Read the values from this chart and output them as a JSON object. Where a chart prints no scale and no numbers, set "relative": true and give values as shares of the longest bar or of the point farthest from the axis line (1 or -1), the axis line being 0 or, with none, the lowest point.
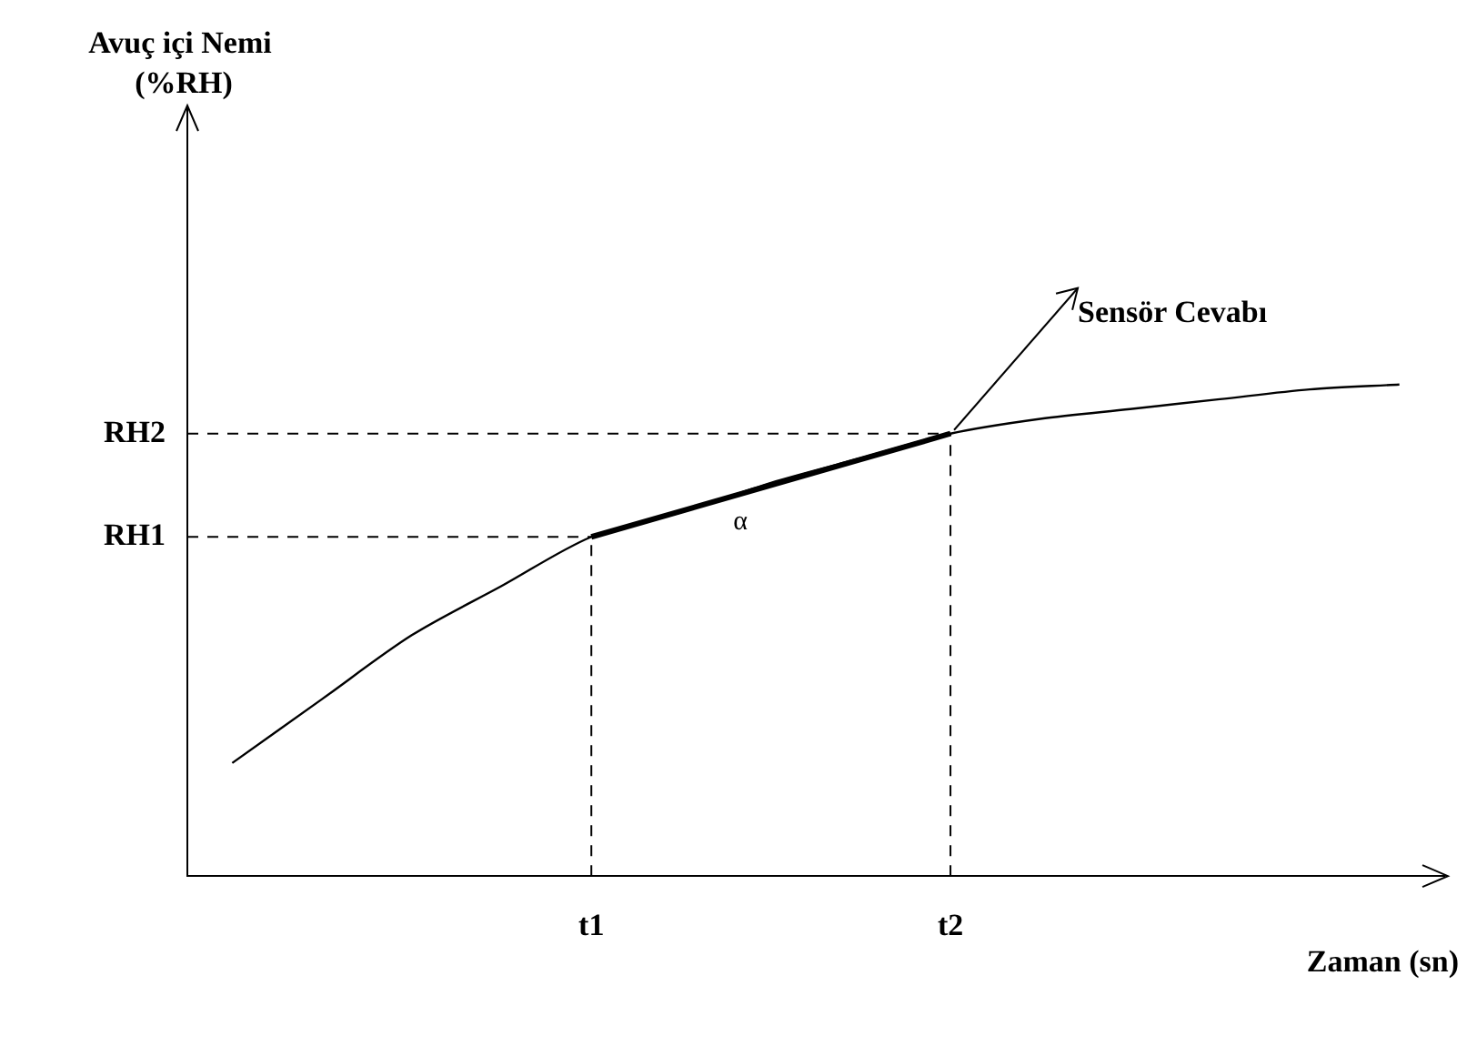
{
  "chart_data": {
    "type": "line",
    "relative": true,
    "xlabel": "Zaman (sn)",
    "categories": [
      null,
      null,
      null,
      null,
      "t1",
      null,
      null,
      null,
      "t2",
      null,
      null,
      null,
      null,
      null
    ],
    "series": [
      {
        "color": "#000000",
        "values": [
          0.23,
          0.36,
          0.49,
          0.59,
          0.69,
          0.74,
          0.8,
          0.85,
          0.9,
          0.93,
          0.95,
          0.97,
          0.99,
          1
        ]
      },
      {
        "color": "#000000",
        "values": [
          null,
          null,
          null,
          null,
          0.69,
          null,
          null,
          null,
          0.9,
          null,
          null,
          null,
          null,
          null
        ]
      }
    ],
    "ref_lines": [
      {
        "axis": "y",
        "value": 0.69,
        "label": "RH1",
        "line_style": "dashed"
      },
      {
        "axis": "y",
        "value": 0.9,
        "label": "RH2",
        "line_style": "dashed"
      },
      {
        "axis": "x",
        "value": "t1",
        "line_style": "dashed"
      },
      {
        "axis": "x",
        "value": "t2",
        "line_style": "dashed"
      }
    ],
    "annotations": [
      "Avuç içi Nemi\n(%RH)",
      "α",
      {
        "text": "Sensör Cevabı",
        "x": "t2",
        "y": 0.9
      }
    ],
    "grid": false,
    "legend": false,
    "marker": "none",
    "line_style": "solid"
  }
}
